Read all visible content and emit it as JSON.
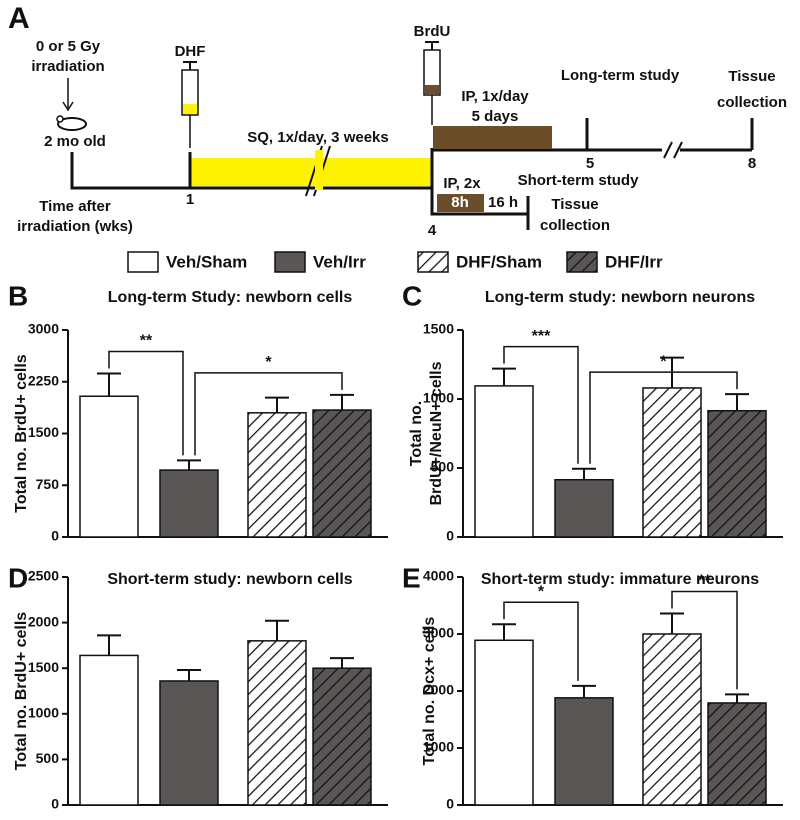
{
  "diagram": {
    "letter": "A",
    "irradiation": [
      "0 or 5 Gy",
      "irradiation"
    ],
    "age": "2 mo old",
    "dhf": "DHF",
    "sq": "SQ, 1x/day, 3 weeks",
    "brdu": "BrdU",
    "ip_long": [
      "IP, 1x/day",
      "5 days"
    ],
    "long_term": "Long-term study",
    "tissue_long": [
      "Tissue",
      "collection"
    ],
    "weeks": [
      "1",
      "4",
      "5",
      "8"
    ],
    "axis_label": [
      "Time after",
      "irradiation (wks)"
    ],
    "short_term": "Short-term study",
    "ip_short": "IP, 2x",
    "pulse": "8h",
    "chase": "16 h",
    "tissue_short": [
      "Tissue",
      "collection"
    ]
  },
  "legend": [
    {
      "name": "Veh/Sham",
      "color": "#ffffff",
      "hatch": false
    },
    {
      "name": "Veh/Irr",
      "color": "#5a5655",
      "hatch": false
    },
    {
      "name": "DHF/Sham",
      "color": "#ffffff",
      "hatch": true
    },
    {
      "name": "DHF/Irr",
      "color": "#5a5655",
      "hatch": true
    }
  ],
  "chart_data": [
    {
      "type": "bar",
      "panel": "B",
      "title": "Long-term Study: newborn cells",
      "ylabel": [
        "Total no. BrdU+ cells"
      ],
      "values": [
        2040,
        970,
        1800,
        1840
      ],
      "errors": [
        330,
        140,
        220,
        220
      ],
      "ylim": [
        0,
        3000
      ],
      "yticks": [
        0,
        750,
        1500,
        2250,
        3000
      ],
      "brackets": [
        {
          "pair": [
            0,
            1
          ],
          "label": "**"
        },
        {
          "pair": [
            1,
            3
          ],
          "label": "*"
        }
      ]
    },
    {
      "type": "bar",
      "panel": "C",
      "title": "Long-term study: newborn neurons",
      "ylabel": [
        "Total no.",
        "BrdU+/NeuN+ cells"
      ],
      "values": [
        1095,
        415,
        1080,
        915
      ],
      "errors": [
        125,
        80,
        220,
        120
      ],
      "ylim": [
        0,
        1500
      ],
      "yticks": [
        0,
        500,
        1000,
        1500
      ],
      "brackets": [
        {
          "pair": [
            0,
            1
          ],
          "label": "***"
        },
        {
          "pair": [
            1,
            3
          ],
          "label": "*"
        }
      ]
    },
    {
      "type": "bar",
      "panel": "D",
      "title": "Short-term study: newborn cells",
      "ylabel": [
        "Total no. BrdU+ cells"
      ],
      "values": [
        1640,
        1360,
        1800,
        1500
      ],
      "errors": [
        220,
        120,
        220,
        110
      ],
      "ylim": [
        0,
        2500
      ],
      "yticks": [
        0,
        500,
        1000,
        1500,
        2000,
        2500
      ],
      "brackets": []
    },
    {
      "type": "bar",
      "panel": "E",
      "title": "Short-term study: immature neurons",
      "ylabel": [
        "Total no. Dcx+ cells"
      ],
      "values": [
        2890,
        1880,
        3000,
        1790
      ],
      "errors": [
        280,
        210,
        360,
        150
      ],
      "ylim": [
        0,
        4000
      ],
      "yticks": [
        0,
        1000,
        2000,
        3000,
        4000
      ],
      "brackets": [
        {
          "pair": [
            0,
            1
          ],
          "label": "*"
        },
        {
          "pair": [
            2,
            3
          ],
          "label": "**"
        }
      ]
    }
  ]
}
